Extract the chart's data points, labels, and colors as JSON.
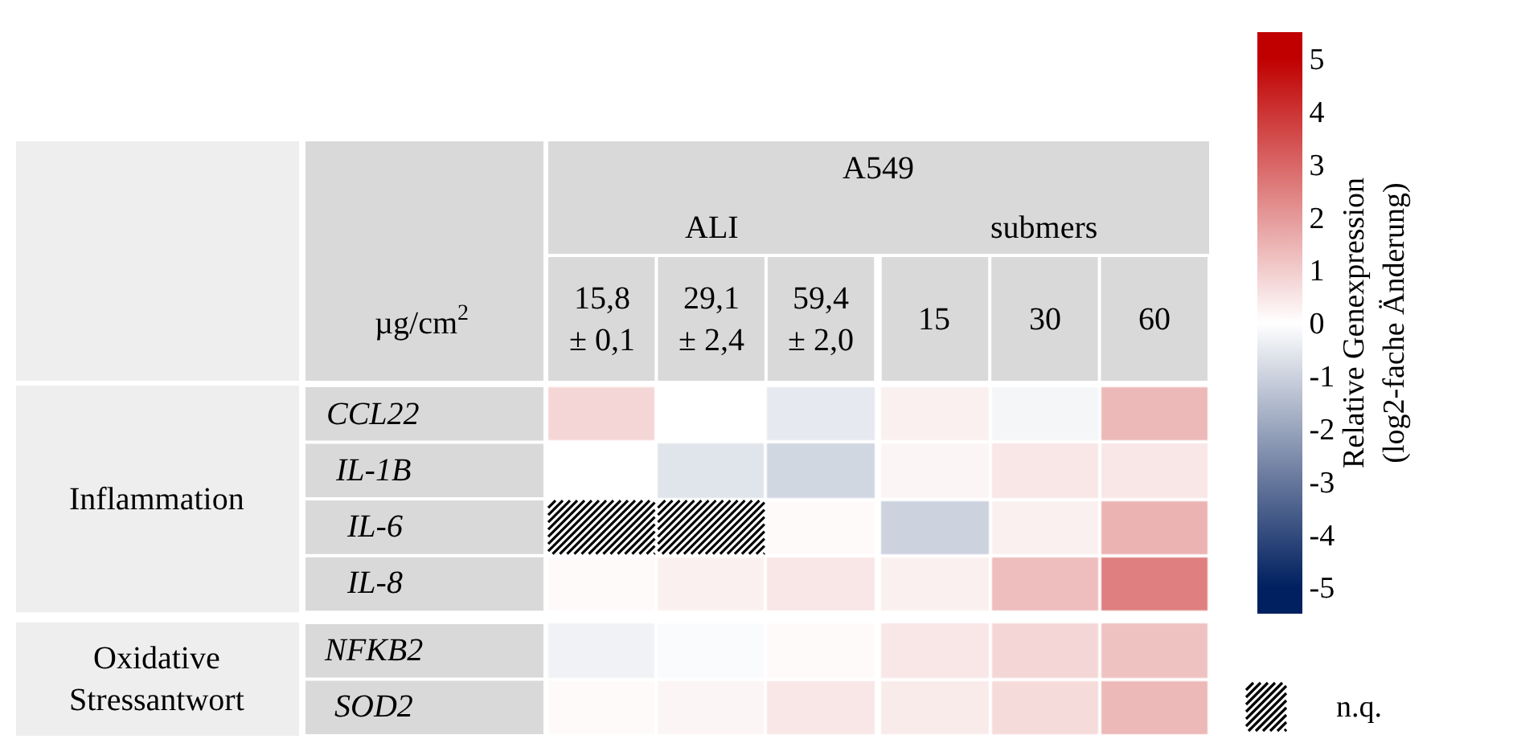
{
  "chart_data": {
    "type": "heatmap",
    "categories": [
      "15,8\n± 0,1",
      "29,1\n± 2,4",
      "59,4\n± 2,0",
      "15",
      "30",
      "60"
    ],
    "y_categories": [
      "CCL22",
      "IL-1B",
      "IL-6",
      "IL-8",
      "NFKB2",
      "SOD2"
    ],
    "cells": [
      [
        0.8,
        0.0,
        -0.5,
        0.3,
        -0.2,
        1.4
      ],
      [
        0.0,
        -0.6,
        -0.9,
        0.2,
        0.5,
        0.5
      ],
      [
        null,
        null,
        0.1,
        -1.0,
        0.3,
        1.5
      ],
      [
        0.1,
        0.3,
        0.5,
        0.3,
        1.3,
        2.5
      ],
      [
        -0.3,
        -0.1,
        0.1,
        0.5,
        0.8,
        1.2
      ],
      [
        0.1,
        0.2,
        0.5,
        0.4,
        0.7,
        1.4
      ]
    ],
    "clim": [
      -5.5,
      5.5
    ],
    "cticks": [
      -5,
      -4,
      -3,
      -2,
      -1,
      0,
      1,
      2,
      3,
      4,
      5
    ],
    "colors": [
      "#002060",
      "#334b7d",
      "#66779c",
      "#99a5bd",
      "#ccd2de",
      "#ffffff",
      "#f2cccc",
      "#e59999",
      "#d96666",
      "#cc3333",
      "#c00000"
    ],
    "clabel": "Relative Genexpression\n(log2-fache Änderung)",
    "annotations": [
      "A549",
      "ALI",
      "submers",
      "µg/cm$^{2}$",
      "Inflammation",
      "Oxidative\nStressantwort",
      "n.q."
    ]
  }
}
